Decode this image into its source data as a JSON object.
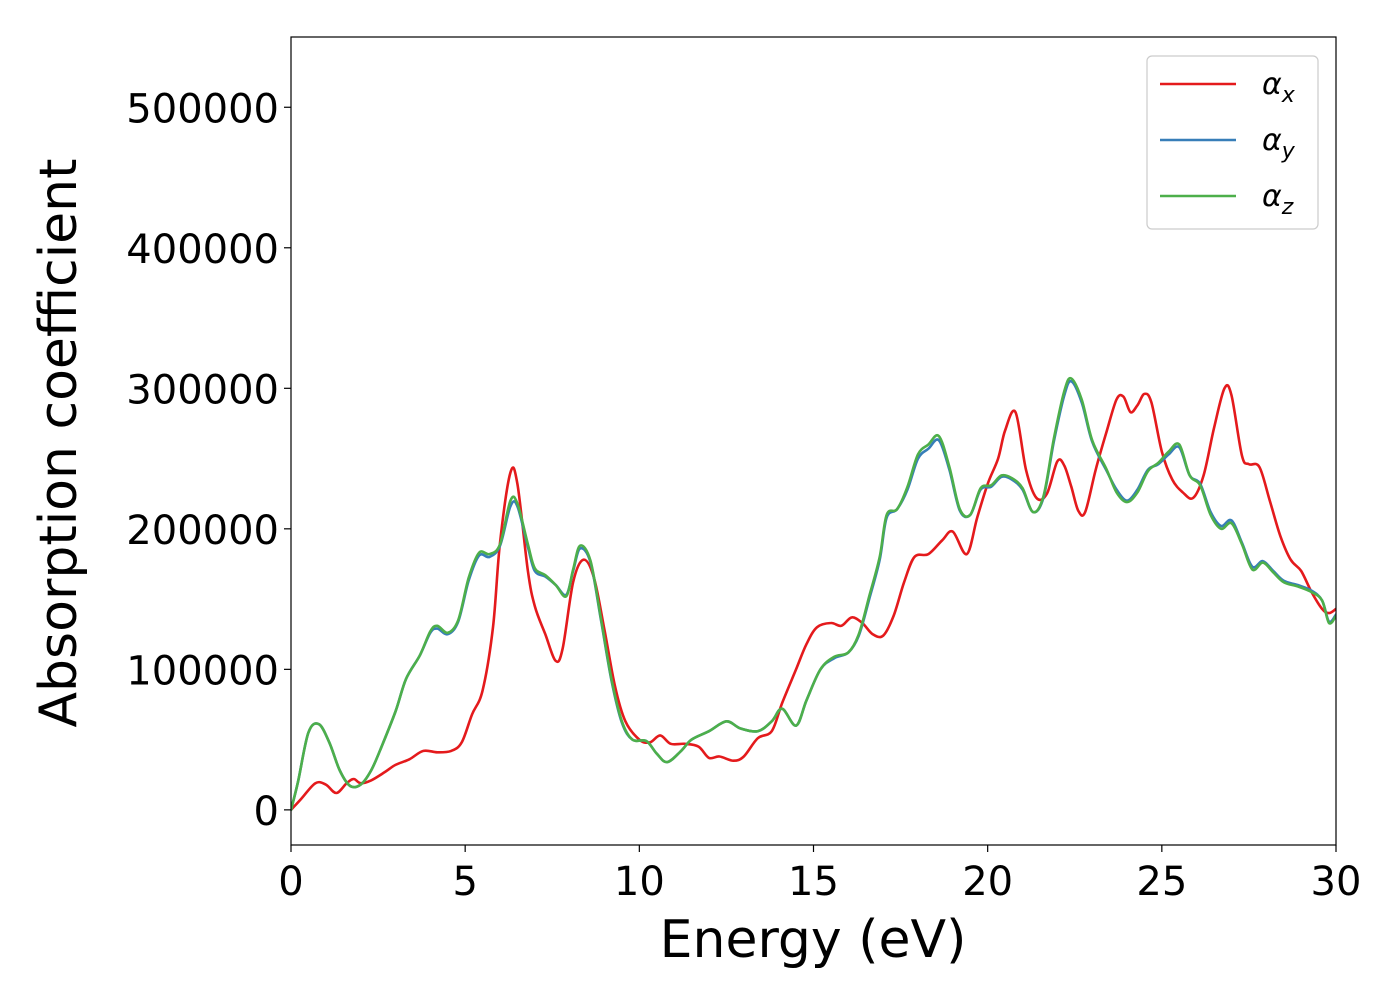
{
  "chart_data": {
    "type": "line",
    "title": "",
    "xlabel": "Energy (eV)",
    "ylabel": "Absorption coefficient",
    "xlim": [
      0,
      30
    ],
    "ylim": [
      -25000,
      550000
    ],
    "xticks": [
      0,
      5,
      10,
      15,
      20,
      25,
      30
    ],
    "xtick_labels": [
      "0",
      "5",
      "10",
      "15",
      "20",
      "25",
      "30"
    ],
    "yticks": [
      0,
      100000,
      200000,
      300000,
      400000,
      500000
    ],
    "ytick_labels": [
      "0",
      "100000",
      "200000",
      "300000",
      "400000",
      "500000"
    ],
    "grid": false,
    "legend_position": "top-right",
    "series": [
      {
        "name": "α_x",
        "legend_main": "α",
        "legend_sub": "x",
        "color": "#e41a1c",
        "points": [
          [
            0,
            0
          ],
          [
            0.3,
            8000
          ],
          [
            0.7,
            19000
          ],
          [
            1.0,
            18000
          ],
          [
            1.3,
            12000
          ],
          [
            1.6,
            19000
          ],
          [
            1.8,
            22000
          ],
          [
            2.0,
            19000
          ],
          [
            2.3,
            21000
          ],
          [
            2.7,
            27000
          ],
          [
            3.0,
            32000
          ],
          [
            3.4,
            36000
          ],
          [
            3.8,
            42000
          ],
          [
            4.2,
            41000
          ],
          [
            4.6,
            42000
          ],
          [
            4.9,
            48000
          ],
          [
            5.2,
            68000
          ],
          [
            5.5,
            85000
          ],
          [
            5.8,
            130000
          ],
          [
            6.0,
            190000
          ],
          [
            6.3,
            240000
          ],
          [
            6.5,
            232000
          ],
          [
            6.8,
            170000
          ],
          [
            7.0,
            145000
          ],
          [
            7.3,
            125000
          ],
          [
            7.6,
            106000
          ],
          [
            7.8,
            115000
          ],
          [
            8.1,
            162000
          ],
          [
            8.4,
            178000
          ],
          [
            8.7,
            165000
          ],
          [
            9.0,
            128000
          ],
          [
            9.3,
            88000
          ],
          [
            9.6,
            63000
          ],
          [
            10.0,
            50000
          ],
          [
            10.3,
            48000
          ],
          [
            10.6,
            53000
          ],
          [
            10.9,
            47000
          ],
          [
            11.3,
            47000
          ],
          [
            11.7,
            45000
          ],
          [
            12.0,
            37000
          ],
          [
            12.3,
            38000
          ],
          [
            12.7,
            35000
          ],
          [
            13.0,
            38000
          ],
          [
            13.4,
            51000
          ],
          [
            13.8,
            56000
          ],
          [
            14.1,
            76000
          ],
          [
            14.5,
            100000
          ],
          [
            14.8,
            118000
          ],
          [
            15.1,
            130000
          ],
          [
            15.5,
            133000
          ],
          [
            15.8,
            131000
          ],
          [
            16.1,
            137000
          ],
          [
            16.4,
            133000
          ],
          [
            16.7,
            125000
          ],
          [
            17.0,
            124000
          ],
          [
            17.3,
            138000
          ],
          [
            17.6,
            162000
          ],
          [
            17.9,
            180000
          ],
          [
            18.3,
            182000
          ],
          [
            18.7,
            192000
          ],
          [
            19.0,
            198000
          ],
          [
            19.4,
            182000
          ],
          [
            19.7,
            208000
          ],
          [
            20.0,
            232000
          ],
          [
            20.3,
            250000
          ],
          [
            20.5,
            270000
          ],
          [
            20.8,
            283000
          ],
          [
            21.1,
            242000
          ],
          [
            21.4,
            222000
          ],
          [
            21.7,
            225000
          ],
          [
            22.0,
            248000
          ],
          [
            22.2,
            245000
          ],
          [
            22.4,
            230000
          ],
          [
            22.6,
            213000
          ],
          [
            22.8,
            212000
          ],
          [
            23.1,
            242000
          ],
          [
            23.4,
            268000
          ],
          [
            23.7,
            292000
          ],
          [
            23.9,
            294000
          ],
          [
            24.1,
            283000
          ],
          [
            24.3,
            288000
          ],
          [
            24.5,
            296000
          ],
          [
            24.7,
            290000
          ],
          [
            25.0,
            255000
          ],
          [
            25.3,
            235000
          ],
          [
            25.6,
            226000
          ],
          [
            25.9,
            222000
          ],
          [
            26.2,
            238000
          ],
          [
            26.5,
            272000
          ],
          [
            26.8,
            300000
          ],
          [
            27.0,
            295000
          ],
          [
            27.3,
            252000
          ],
          [
            27.5,
            246000
          ],
          [
            27.8,
            244000
          ],
          [
            28.1,
            220000
          ],
          [
            28.4,
            195000
          ],
          [
            28.7,
            178000
          ],
          [
            29.0,
            170000
          ],
          [
            29.3,
            155000
          ],
          [
            29.6,
            143000
          ],
          [
            29.8,
            140000
          ],
          [
            30.0,
            143000
          ]
        ]
      },
      {
        "name": "α_y",
        "legend_main": "α",
        "legend_sub": "y",
        "color": "#377eb8",
        "points": [
          [
            0,
            0
          ],
          [
            0.2,
            20000
          ],
          [
            0.5,
            55000
          ],
          [
            0.8,
            61000
          ],
          [
            1.1,
            48000
          ],
          [
            1.4,
            28000
          ],
          [
            1.7,
            17000
          ],
          [
            2.0,
            18000
          ],
          [
            2.3,
            28000
          ],
          [
            2.6,
            45000
          ],
          [
            3.0,
            70000
          ],
          [
            3.3,
            93000
          ],
          [
            3.7,
            110000
          ],
          [
            4.0,
            126000
          ],
          [
            4.2,
            129000
          ],
          [
            4.5,
            125000
          ],
          [
            4.8,
            134000
          ],
          [
            5.1,
            163000
          ],
          [
            5.4,
            181000
          ],
          [
            5.7,
            180000
          ],
          [
            6.0,
            188000
          ],
          [
            6.3,
            216000
          ],
          [
            6.5,
            216000
          ],
          [
            6.8,
            187000
          ],
          [
            7.0,
            170000
          ],
          [
            7.3,
            166000
          ],
          [
            7.6,
            160000
          ],
          [
            7.9,
            153000
          ],
          [
            8.1,
            170000
          ],
          [
            8.3,
            186000
          ],
          [
            8.6,
            176000
          ],
          [
            8.9,
            135000
          ],
          [
            9.2,
            92000
          ],
          [
            9.5,
            62000
          ],
          [
            9.8,
            50000
          ],
          [
            10.2,
            49000
          ],
          [
            10.5,
            40000
          ],
          [
            10.8,
            34000
          ],
          [
            11.2,
            42000
          ],
          [
            11.5,
            50000
          ],
          [
            12.0,
            56000
          ],
          [
            12.5,
            63000
          ],
          [
            12.9,
            58000
          ],
          [
            13.4,
            56000
          ],
          [
            13.8,
            63000
          ],
          [
            14.1,
            72000
          ],
          [
            14.5,
            60000
          ],
          [
            14.8,
            78000
          ],
          [
            15.2,
            100000
          ],
          [
            15.6,
            108000
          ],
          [
            16.0,
            112000
          ],
          [
            16.3,
            124000
          ],
          [
            16.6,
            150000
          ],
          [
            16.9,
            178000
          ],
          [
            17.1,
            208000
          ],
          [
            17.4,
            214000
          ],
          [
            17.7,
            228000
          ],
          [
            18.0,
            250000
          ],
          [
            18.3,
            257000
          ],
          [
            18.6,
            263000
          ],
          [
            18.9,
            242000
          ],
          [
            19.2,
            213000
          ],
          [
            19.5,
            210000
          ],
          [
            19.8,
            228000
          ],
          [
            20.1,
            230000
          ],
          [
            20.4,
            237000
          ],
          [
            20.7,
            235000
          ],
          [
            21.0,
            228000
          ],
          [
            21.3,
            212000
          ],
          [
            21.6,
            222000
          ],
          [
            21.9,
            262000
          ],
          [
            22.2,
            295000
          ],
          [
            22.4,
            305000
          ],
          [
            22.7,
            290000
          ],
          [
            23.0,
            262000
          ],
          [
            23.4,
            242000
          ],
          [
            23.7,
            228000
          ],
          [
            24.0,
            220000
          ],
          [
            24.3,
            228000
          ],
          [
            24.6,
            242000
          ],
          [
            24.9,
            246000
          ],
          [
            25.2,
            253000
          ],
          [
            25.5,
            258000
          ],
          [
            25.8,
            238000
          ],
          [
            26.1,
            232000
          ],
          [
            26.4,
            212000
          ],
          [
            26.7,
            202000
          ],
          [
            27.0,
            206000
          ],
          [
            27.3,
            190000
          ],
          [
            27.6,
            173000
          ],
          [
            27.9,
            177000
          ],
          [
            28.2,
            170000
          ],
          [
            28.5,
            163000
          ],
          [
            28.9,
            160000
          ],
          [
            29.3,
            156000
          ],
          [
            29.6,
            149000
          ],
          [
            29.8,
            134000
          ],
          [
            30.0,
            139000
          ]
        ]
      },
      {
        "name": "α_z",
        "legend_main": "α",
        "legend_sub": "z",
        "color": "#4daf4a",
        "points": [
          [
            0,
            0
          ],
          [
            0.2,
            20000
          ],
          [
            0.5,
            55000
          ],
          [
            0.8,
            61000
          ],
          [
            1.1,
            48000
          ],
          [
            1.4,
            28000
          ],
          [
            1.7,
            17000
          ],
          [
            2.0,
            18000
          ],
          [
            2.3,
            28000
          ],
          [
            2.6,
            45000
          ],
          [
            3.0,
            70000
          ],
          [
            3.3,
            93000
          ],
          [
            3.7,
            110000
          ],
          [
            4.0,
            127000
          ],
          [
            4.2,
            131000
          ],
          [
            4.5,
            126000
          ],
          [
            4.8,
            135000
          ],
          [
            5.1,
            165000
          ],
          [
            5.4,
            183000
          ],
          [
            5.7,
            182000
          ],
          [
            6.0,
            189000
          ],
          [
            6.3,
            220000
          ],
          [
            6.5,
            218000
          ],
          [
            6.8,
            189000
          ],
          [
            7.0,
            172000
          ],
          [
            7.3,
            167000
          ],
          [
            7.6,
            160000
          ],
          [
            7.9,
            152000
          ],
          [
            8.1,
            171000
          ],
          [
            8.3,
            188000
          ],
          [
            8.6,
            177000
          ],
          [
            8.9,
            136000
          ],
          [
            9.2,
            93000
          ],
          [
            9.5,
            63000
          ],
          [
            9.8,
            50000
          ],
          [
            10.2,
            49000
          ],
          [
            10.5,
            40000
          ],
          [
            10.8,
            34000
          ],
          [
            11.2,
            42000
          ],
          [
            11.5,
            50000
          ],
          [
            12.0,
            56000
          ],
          [
            12.5,
            63000
          ],
          [
            12.9,
            58000
          ],
          [
            13.4,
            56000
          ],
          [
            13.8,
            63000
          ],
          [
            14.1,
            72000
          ],
          [
            14.5,
            60000
          ],
          [
            14.8,
            78000
          ],
          [
            15.2,
            100000
          ],
          [
            15.6,
            109000
          ],
          [
            16.0,
            112000
          ],
          [
            16.3,
            125000
          ],
          [
            16.6,
            152000
          ],
          [
            16.9,
            180000
          ],
          [
            17.1,
            210000
          ],
          [
            17.4,
            214000
          ],
          [
            17.7,
            230000
          ],
          [
            18.0,
            253000
          ],
          [
            18.3,
            260000
          ],
          [
            18.6,
            266000
          ],
          [
            18.9,
            244000
          ],
          [
            19.2,
            214000
          ],
          [
            19.5,
            210000
          ],
          [
            19.8,
            229000
          ],
          [
            20.1,
            231000
          ],
          [
            20.4,
            238000
          ],
          [
            20.7,
            236000
          ],
          [
            21.0,
            229000
          ],
          [
            21.3,
            212000
          ],
          [
            21.6,
            223000
          ],
          [
            21.9,
            264000
          ],
          [
            22.2,
            298000
          ],
          [
            22.4,
            307000
          ],
          [
            22.7,
            292000
          ],
          [
            23.0,
            263000
          ],
          [
            23.4,
            243000
          ],
          [
            23.7,
            226000
          ],
          [
            24.0,
            219000
          ],
          [
            24.3,
            226000
          ],
          [
            24.6,
            241000
          ],
          [
            24.9,
            247000
          ],
          [
            25.2,
            255000
          ],
          [
            25.5,
            260000
          ],
          [
            25.8,
            238000
          ],
          [
            26.1,
            231000
          ],
          [
            26.4,
            210000
          ],
          [
            26.7,
            200000
          ],
          [
            27.0,
            204000
          ],
          [
            27.3,
            189000
          ],
          [
            27.6,
            171000
          ],
          [
            27.9,
            176000
          ],
          [
            28.2,
            169000
          ],
          [
            28.5,
            162000
          ],
          [
            28.9,
            159000
          ],
          [
            29.3,
            155000
          ],
          [
            29.6,
            149000
          ],
          [
            29.8,
            133000
          ],
          [
            30.0,
            138000
          ]
        ]
      }
    ]
  }
}
